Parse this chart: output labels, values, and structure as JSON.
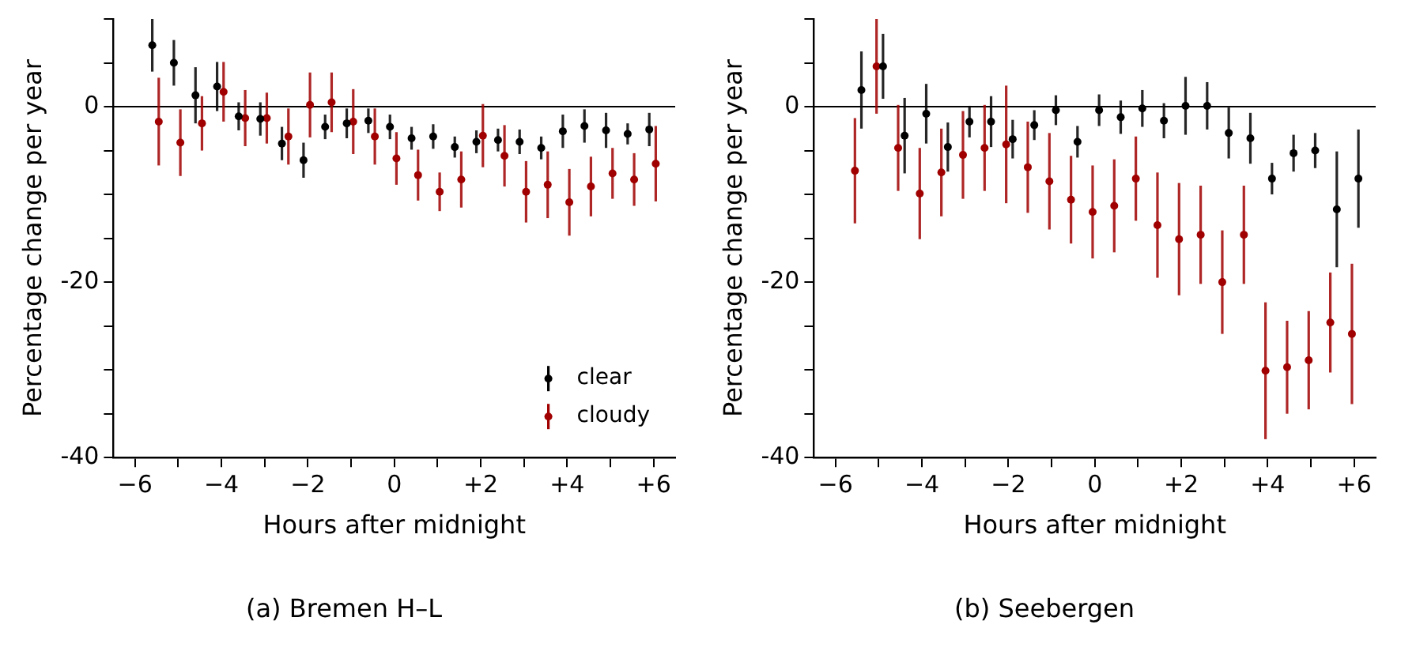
{
  "chart_data": [
    {
      "type": "scatter",
      "title": "(a) Bremen H–L",
      "xlabel": "Hours after midnight",
      "ylabel": "Percentage change per year",
      "xlim": [
        -6.5,
        6.5
      ],
      "ylim": [
        -40,
        10
      ],
      "xticks": [
        {
          "value": -6,
          "label": "−6"
        },
        {
          "value": -5,
          "label": null
        },
        {
          "value": -4,
          "label": "−4"
        },
        {
          "value": -3,
          "label": null
        },
        {
          "value": -2,
          "label": "−2"
        },
        {
          "value": -1,
          "label": null
        },
        0,
        {
          "value": 1,
          "label": null
        },
        {
          "value": 2,
          "label": "+2"
        },
        {
          "value": 3,
          "label": null
        },
        {
          "value": 4,
          "label": "+4"
        },
        {
          "value": 5,
          "label": null
        },
        {
          "value": 6,
          "label": "+6"
        }
      ],
      "yticks": [
        -40,
        {
          "value": -35,
          "label": null
        },
        {
          "value": -30,
          "label": null
        },
        {
          "value": -25,
          "label": null
        },
        -20,
        {
          "value": -15,
          "label": null
        },
        {
          "value": -10,
          "label": null
        },
        {
          "value": -5,
          "label": null
        },
        0,
        {
          "value": 5,
          "label": null
        },
        {
          "value": 10,
          "label": null
        }
      ],
      "grid": false,
      "legend": "bottom right",
      "marker": "circle",
      "ref_lines": [
        {
          "axis": "y",
          "value": 0,
          "color": "#000000"
        }
      ],
      "series": [
        {
          "name": "clear",
          "color": "#000000",
          "x": [
            -5.6,
            -5.1,
            -4.6,
            -4.1,
            -3.6,
            -3.1,
            -2.6,
            -2.1,
            -1.6,
            -1.1,
            -0.6,
            -0.1,
            0.4,
            0.9,
            1.4,
            1.9,
            2.4,
            2.9,
            3.4,
            3.9,
            4.4,
            4.9,
            5.4,
            5.9
          ],
          "values": [
            7.0,
            5.0,
            1.3,
            2.3,
            -1.1,
            -1.4,
            -4.2,
            -6.1,
            -2.3,
            -1.9,
            -1.6,
            -2.3,
            -3.6,
            -3.4,
            -4.6,
            -4.0,
            -3.8,
            -4.0,
            -4.7,
            -2.8,
            -2.2,
            -2.7,
            -3.1,
            -2.6
          ],
          "errors": [
            3.0,
            2.6,
            3.2,
            2.8,
            1.6,
            1.9,
            1.9,
            2.0,
            1.4,
            1.7,
            1.4,
            1.4,
            1.3,
            1.4,
            1.2,
            1.3,
            1.3,
            1.4,
            1.3,
            1.9,
            1.9,
            2.0,
            1.2,
            1.9
          ]
        },
        {
          "name": "cloudy",
          "color": "#a00000",
          "x": [
            -5.45,
            -4.95,
            -4.45,
            -3.95,
            -3.45,
            -2.95,
            -2.45,
            -1.95,
            -1.45,
            -0.95,
            -0.45,
            0.05,
            0.55,
            1.05,
            1.55,
            2.05,
            2.55,
            3.05,
            3.55,
            4.05,
            4.55,
            5.05,
            5.55,
            6.05
          ],
          "values": [
            -1.7,
            -4.1,
            -1.9,
            1.7,
            -1.3,
            -1.3,
            -3.4,
            0.2,
            0.5,
            -1.7,
            -3.4,
            -5.9,
            -7.8,
            -9.7,
            -8.3,
            -3.3,
            -5.6,
            -9.7,
            -8.9,
            -10.9,
            -9.1,
            -7.6,
            -8.3,
            -6.5
          ],
          "errors": [
            5.0,
            3.8,
            3.1,
            3.4,
            3.2,
            2.9,
            3.2,
            3.7,
            3.4,
            3.7,
            3.2,
            3.0,
            2.9,
            2.2,
            3.2,
            3.6,
            3.5,
            3.5,
            3.8,
            3.8,
            3.4,
            2.9,
            3.0,
            4.3
          ]
        }
      ]
    },
    {
      "type": "scatter",
      "title": "(b) Seebergen",
      "xlabel": "Hours after midnight",
      "ylabel": "Percentage change per year",
      "xlim": [
        -6.5,
        6.5
      ],
      "ylim": [
        -40,
        10
      ],
      "xticks": [
        {
          "value": -6,
          "label": "−6"
        },
        {
          "value": -5,
          "label": null
        },
        {
          "value": -4,
          "label": "−4"
        },
        {
          "value": -3,
          "label": null
        },
        {
          "value": -2,
          "label": "−2"
        },
        {
          "value": -1,
          "label": null
        },
        0,
        {
          "value": 1,
          "label": null
        },
        {
          "value": 2,
          "label": "+2"
        },
        {
          "value": 3,
          "label": null
        },
        {
          "value": 4,
          "label": "+4"
        },
        {
          "value": 5,
          "label": null
        },
        {
          "value": 6,
          "label": "+6"
        }
      ],
      "yticks": [
        -40,
        {
          "value": -35,
          "label": null
        },
        {
          "value": -30,
          "label": null
        },
        {
          "value": -25,
          "label": null
        },
        -20,
        {
          "value": -15,
          "label": null
        },
        {
          "value": -10,
          "label": null
        },
        {
          "value": -5,
          "label": null
        },
        0,
        {
          "value": 5,
          "label": null
        },
        {
          "value": 10,
          "label": null
        }
      ],
      "grid": false,
      "marker": "circle",
      "ref_lines": [
        {
          "axis": "y",
          "value": 0,
          "color": "#000000"
        }
      ],
      "series": [
        {
          "color": "#000000",
          "x": [
            -5.4,
            -4.9,
            -4.4,
            -3.9,
            -3.4,
            -2.9,
            -2.4,
            -1.9,
            -1.4,
            -0.9,
            -0.4,
            0.1,
            0.6,
            1.1,
            1.6,
            2.1,
            2.6,
            3.1,
            3.6,
            4.1,
            4.6,
            5.1,
            5.6,
            6.1
          ],
          "values": [
            1.9,
            4.6,
            -3.3,
            -0.8,
            -4.6,
            -1.7,
            -1.7,
            -3.7,
            -2.1,
            -0.4,
            -4.0,
            -0.4,
            -1.2,
            -0.2,
            -1.6,
            0.1,
            0.1,
            -3.0,
            -3.6,
            -8.2,
            -5.3,
            -5.0,
            -11.7,
            -8.2
          ],
          "errors": [
            4.4,
            3.7,
            4.3,
            3.4,
            2.8,
            1.8,
            2.9,
            2.2,
            1.7,
            1.7,
            1.8,
            1.8,
            1.9,
            2.1,
            2.0,
            3.3,
            2.7,
            2.9,
            2.9,
            1.8,
            2.1,
            2.0,
            6.6,
            5.6
          ]
        },
        {
          "color": "#a00000",
          "x": [
            -5.55,
            -5.05,
            -4.55,
            -4.05,
            -3.55,
            -3.05,
            -2.55,
            -2.05,
            -1.55,
            -1.05,
            -0.55,
            -0.05,
            0.45,
            0.95,
            1.45,
            1.95,
            2.45,
            2.95,
            3.45,
            3.95,
            4.45,
            4.95,
            5.45,
            5.95
          ],
          "values": [
            -7.3,
            4.6,
            -4.7,
            -9.9,
            -7.5,
            -5.5,
            -4.7,
            -4.3,
            -6.9,
            -8.5,
            -10.6,
            -12.0,
            -11.3,
            -8.2,
            -13.5,
            -15.1,
            -14.6,
            -20.0,
            -14.6,
            -30.1,
            -29.7,
            -28.9,
            -24.6,
            -25.9
          ],
          "errors": [
            6.0,
            5.4,
            4.9,
            5.2,
            5.0,
            5.0,
            4.9,
            6.7,
            5.2,
            5.5,
            5.0,
            5.3,
            5.3,
            4.8,
            6.0,
            6.4,
            5.6,
            5.9,
            5.6,
            7.8,
            5.3,
            5.6,
            5.7,
            8.0
          ]
        }
      ]
    }
  ]
}
